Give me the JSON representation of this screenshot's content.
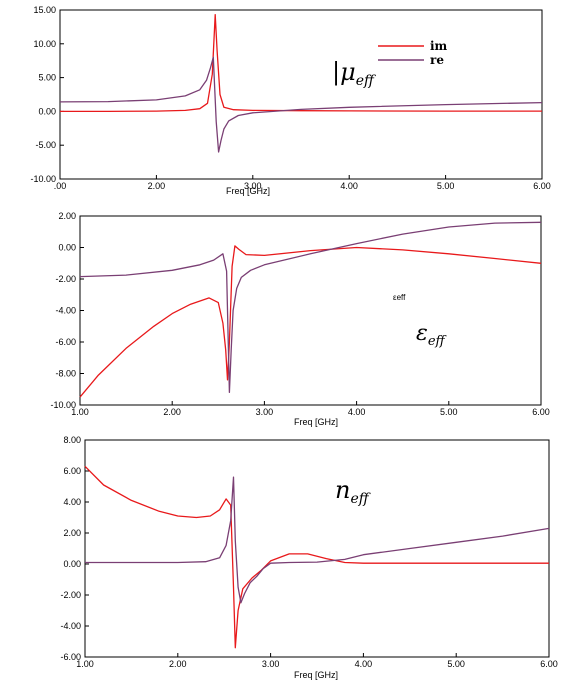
{
  "colors": {
    "im": "#e8191b",
    "re": "#7a3f74",
    "axis": "#000000"
  },
  "chart_data": [
    {
      "type": "line",
      "xlabel": "Freq [GHz]",
      "ylabel": "",
      "xlim": [
        1.0,
        6.0
      ],
      "ylim": [
        -10.0,
        15.0
      ],
      "x_tick_labels": [
        ".00",
        "2.00",
        "3.00",
        "4.00",
        "5.00",
        "6.00"
      ],
      "y_tick_labels": [
        "15.00",
        "10.00",
        "5.00",
        "0.00",
        "-5.00",
        "-10.00"
      ],
      "x_ticks": [
        1,
        2,
        3,
        4,
        5,
        6
      ],
      "y_ticks": [
        15,
        10,
        5,
        0,
        -5,
        -10
      ],
      "annotation": "|μ",
      "annotation_sub": "eff",
      "legend": {
        "position": "top-right",
        "entries": [
          "im",
          "re"
        ]
      },
      "series": [
        {
          "name": "im",
          "color_key": "im",
          "x": [
            1.0,
            1.5,
            2.0,
            2.3,
            2.45,
            2.53,
            2.58,
            2.61,
            2.63,
            2.66,
            2.7,
            2.8,
            3.0,
            3.5,
            4.0,
            5.0,
            6.0
          ],
          "y": [
            0.0,
            0.0,
            0.05,
            0.15,
            0.4,
            1.2,
            5.5,
            14.3,
            9.0,
            2.5,
            0.6,
            0.25,
            0.15,
            0.1,
            0.08,
            0.05,
            0.05
          ]
        },
        {
          "name": "re",
          "color_key": "re",
          "x": [
            1.0,
            1.5,
            2.0,
            2.3,
            2.45,
            2.52,
            2.56,
            2.59,
            2.62,
            2.645,
            2.67,
            2.7,
            2.75,
            2.85,
            3.0,
            3.5,
            4.0,
            5.0,
            6.0
          ],
          "y": [
            1.4,
            1.45,
            1.7,
            2.3,
            3.2,
            4.6,
            6.4,
            8.0,
            -1.5,
            -6.0,
            -4.3,
            -2.6,
            -1.4,
            -0.6,
            -0.2,
            0.3,
            0.6,
            1.0,
            1.3
          ]
        }
      ]
    },
    {
      "type": "line",
      "xlabel": "Freq [GHz]",
      "ylabel": "",
      "xlim": [
        1.0,
        6.0
      ],
      "ylim": [
        -10.0,
        2.0
      ],
      "x_tick_labels": [
        "1.00",
        "2.00",
        "3.00",
        "4.00",
        "5.00",
        "6.00"
      ],
      "y_tick_labels": [
        "2.00",
        "0.00",
        "-2.00",
        "-4.00",
        "-6.00",
        "-8.00",
        "-10.00"
      ],
      "x_ticks": [
        1,
        2,
        3,
        4,
        5,
        6
      ],
      "y_ticks": [
        2,
        0,
        -2,
        -4,
        -6,
        -8,
        -10
      ],
      "annotation": "ε",
      "annotation_sub": "eff",
      "small_label": "εeff",
      "series": [
        {
          "name": "",
          "color_key": "im",
          "x": [
            1.0,
            1.2,
            1.5,
            1.8,
            2.0,
            2.2,
            2.4,
            2.5,
            2.55,
            2.58,
            2.6,
            2.62,
            2.65,
            2.68,
            2.72,
            2.8,
            3.0,
            3.5,
            4.0,
            4.5,
            5.0,
            5.5,
            6.0
          ],
          "y": [
            -9.5,
            -8.1,
            -6.4,
            -5.0,
            -4.2,
            -3.6,
            -3.2,
            -3.5,
            -4.8,
            -6.5,
            -8.4,
            -6.0,
            -1.2,
            0.1,
            -0.1,
            -0.45,
            -0.5,
            -0.2,
            0.0,
            -0.15,
            -0.4,
            -0.7,
            -1.0
          ]
        },
        {
          "name": "",
          "color_key": "re",
          "x": [
            1.0,
            1.5,
            2.0,
            2.3,
            2.45,
            2.55,
            2.59,
            2.62,
            2.64,
            2.66,
            2.7,
            2.75,
            2.85,
            3.0,
            3.5,
            4.0,
            4.5,
            5.0,
            5.5,
            6.0
          ],
          "y": [
            -1.85,
            -1.75,
            -1.45,
            -1.1,
            -0.8,
            -0.4,
            -1.5,
            -9.2,
            -6.5,
            -4.0,
            -2.6,
            -1.9,
            -1.45,
            -1.1,
            -0.4,
            0.25,
            0.85,
            1.3,
            1.55,
            1.6
          ]
        }
      ]
    },
    {
      "type": "line",
      "xlabel": "Freq [GHz]",
      "ylabel": "",
      "xlim": [
        1.0,
        6.0
      ],
      "ylim": [
        -6.0,
        8.0
      ],
      "x_tick_labels": [
        "1.00",
        "2.00",
        "3.00",
        "4.00",
        "5.00",
        "6.00"
      ],
      "y_tick_labels": [
        "8.00",
        "6.00",
        "4.00",
        "2.00",
        "0.00",
        "-2.00",
        "-4.00",
        "-6.00"
      ],
      "x_ticks": [
        1,
        2,
        3,
        4,
        5,
        6
      ],
      "y_ticks": [
        8,
        6,
        4,
        2,
        0,
        -2,
        -4,
        -6
      ],
      "annotation": "n",
      "annotation_sub": "eff",
      "series": [
        {
          "name": "",
          "color_key": "im",
          "x": [
            1.0,
            1.2,
            1.5,
            1.8,
            2.0,
            2.2,
            2.35,
            2.45,
            2.52,
            2.57,
            2.6,
            2.62,
            2.65,
            2.7,
            2.8,
            2.9,
            3.0,
            3.2,
            3.4,
            3.6,
            3.8,
            4.0,
            5.0,
            6.0
          ],
          "y": [
            6.3,
            5.1,
            4.1,
            3.4,
            3.1,
            3.0,
            3.1,
            3.5,
            4.2,
            3.8,
            -1.5,
            -5.4,
            -3.0,
            -1.6,
            -0.9,
            -0.4,
            0.2,
            0.65,
            0.65,
            0.35,
            0.1,
            0.05,
            0.05,
            0.05
          ]
        },
        {
          "name": "",
          "color_key": "re",
          "x": [
            1.0,
            1.5,
            2.0,
            2.3,
            2.45,
            2.52,
            2.57,
            2.6,
            2.62,
            2.65,
            2.68,
            2.72,
            2.78,
            2.85,
            2.92,
            3.0,
            3.2,
            3.5,
            3.8,
            4.0,
            4.5,
            5.0,
            5.5,
            6.0
          ],
          "y": [
            0.1,
            0.1,
            0.1,
            0.15,
            0.4,
            1.2,
            2.8,
            5.6,
            1.5,
            -1.5,
            -2.5,
            -1.9,
            -1.2,
            -0.8,
            -0.3,
            0.05,
            0.1,
            0.12,
            0.3,
            0.6,
            1.0,
            1.4,
            1.8,
            2.3
          ]
        }
      ]
    }
  ]
}
